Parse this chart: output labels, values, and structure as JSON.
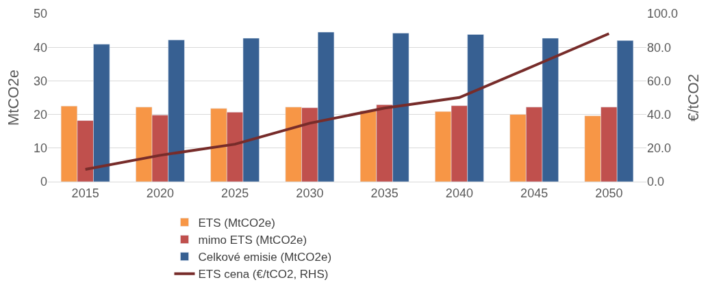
{
  "chart_data": {
    "type": "bar",
    "ylabel": "MtCO2e",
    "y2label": "€/tCO2",
    "categories": [
      "2015",
      "2020",
      "2025",
      "2030",
      "2035",
      "2040",
      "2045",
      "2050"
    ],
    "series": [
      {
        "name": "ETS (MtCO2e)",
        "color": "#f79646",
        "values": [
          22.5,
          22.2,
          21.8,
          22.2,
          21.1,
          20.9,
          20.0,
          19.6
        ]
      },
      {
        "name": "mimo ETS (MtCO2e)",
        "color": "#c0504d",
        "values": [
          18.2,
          19.8,
          20.7,
          22.0,
          22.9,
          22.6,
          22.2,
          22.2
        ]
      },
      {
        "name": "Celkové emisie (MtCO2e)",
        "color": "#376092",
        "values": [
          40.9,
          42.2,
          42.7,
          44.5,
          44.2,
          43.8,
          42.7,
          42.0
        ]
      },
      {
        "name": "ETS cena (€/tCO2, RHS)",
        "color": "#772c2a",
        "type": "line",
        "axis": "y2",
        "values": [
          7.3,
          15.7,
          22.3,
          34.8,
          43.8,
          50.1,
          69.0,
          88.1
        ]
      }
    ],
    "ylim": [
      0,
      50
    ],
    "yticks": [
      0,
      10,
      20,
      30,
      40,
      50
    ],
    "y2lim": [
      0,
      100
    ],
    "y2ticks": [
      {
        "value": 0,
        "label": "0.0"
      },
      {
        "value": 20,
        "label": "20.0"
      },
      {
        "value": 40,
        "label": "40.0"
      },
      {
        "value": 60,
        "label": "60.0"
      },
      {
        "value": 80,
        "label": "80.0"
      },
      {
        "value": 100,
        "label": "100.0"
      }
    ],
    "grid": "y",
    "legend": "bottom",
    "marker": "none",
    "line_style": "solid"
  }
}
